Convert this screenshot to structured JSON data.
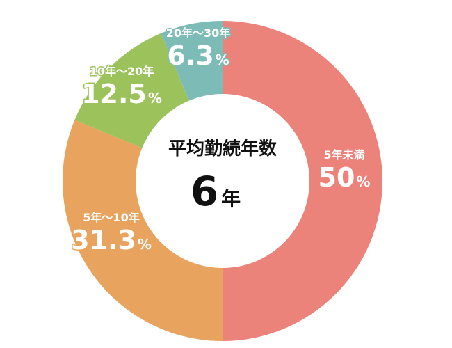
{
  "chart_data": {
    "type": "pie",
    "center_title": "平均勤続年数",
    "center_value": "6",
    "center_unit": "年",
    "segments": [
      {
        "label": "5年未満",
        "value": 50,
        "display": "50",
        "unit": "%",
        "color": "#ec837a"
      },
      {
        "label": "5年～10年",
        "value": 31.3,
        "display": "31.3",
        "unit": "%",
        "color": "#e8a35f"
      },
      {
        "label": "10年～20年",
        "value": 12.5,
        "display": "12.5",
        "unit": "%",
        "color": "#9cc25b"
      },
      {
        "label": "20年～30年",
        "value": 6.3,
        "display": "6.3",
        "unit": "%",
        "color": "#7dbcb6"
      }
    ]
  }
}
